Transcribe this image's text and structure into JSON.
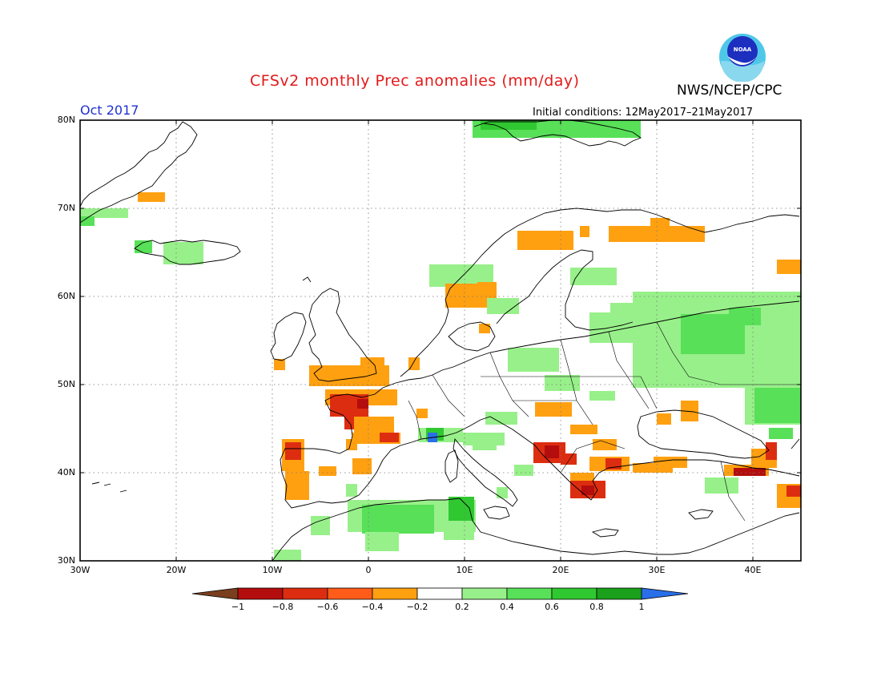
{
  "header": {
    "title": "CFSv2 monthly Prec anomalies (mm/day)",
    "agency": "NWS/NCEP/CPC",
    "period": "Oct 2017",
    "initial_conditions": "Initial conditions: 12May2017–21May2017",
    "logo_text": "NOAA"
  },
  "map": {
    "region": "Europe",
    "projection": "latitude-longitude",
    "lon_range": [
      -30,
      45
    ],
    "lat_range": [
      30,
      80
    ],
    "grid": "dotted",
    "lat_labels": [
      "80N",
      "70N",
      "60N",
      "50N",
      "40N",
      "30N"
    ],
    "lon_labels": [
      "30W",
      "20W",
      "10W",
      "0",
      "10E",
      "20E",
      "30E",
      "40E"
    ],
    "colors": {
      "lt_neg1": "#7a3f1e",
      "neg1_neg08": "#b40d0d",
      "neg08_neg06": "#dd2d10",
      "neg06_neg04": "#ff5c1a",
      "neg04_neg02": "#ffa010",
      "neutral": "#ffffff",
      "pos02_pos04": "#98f08a",
      "pos04_pos06": "#58e058",
      "pos06_pos08": "#30c830",
      "pos08_pos1": "#1aa01a",
      "gt_pos1": "#2a6ee8",
      "coast": "#000000"
    }
  },
  "colorbar": {
    "labels": [
      "−1",
      "−0.8",
      "−0.6",
      "−0.4",
      "−0.2",
      "0.2",
      "0.4",
      "0.6",
      "0.8",
      "1"
    ]
  }
}
